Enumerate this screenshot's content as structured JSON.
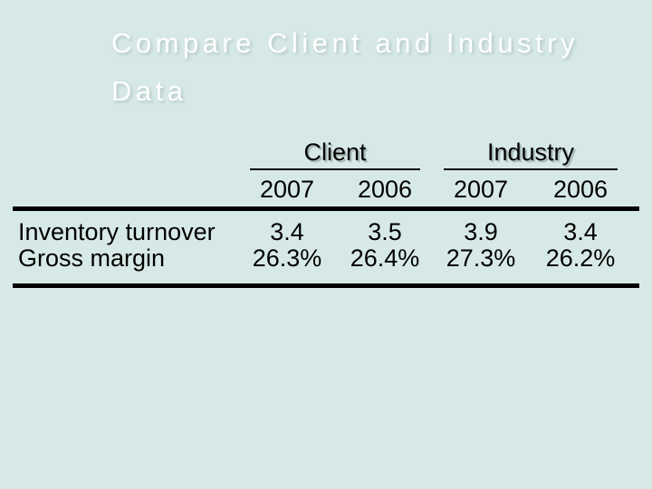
{
  "colors": {
    "background": "#d7e9e6",
    "title_color": "#ffffff",
    "text_color": "#000000",
    "rule_color": "#000000"
  },
  "slide": {
    "title": "Compare Client and Industry Data"
  },
  "table": {
    "group_headers": [
      {
        "label": "Client"
      },
      {
        "label": "Industry"
      }
    ],
    "year_headers": [
      "2007",
      "2006",
      "2007",
      "2006"
    ],
    "rows": [
      {
        "label": "Inventory turnover",
        "values": [
          "3.4",
          "3.5",
          "3.9",
          "3.4"
        ]
      },
      {
        "label": "Gross margin",
        "values": [
          "26.3%",
          "26.4%",
          "27.3%",
          "26.2%"
        ]
      }
    ]
  }
}
